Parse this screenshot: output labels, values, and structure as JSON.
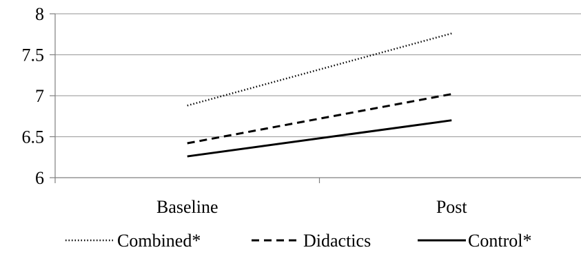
{
  "chart_data": {
    "type": "line",
    "categories": [
      "Baseline",
      "Post"
    ],
    "series": [
      {
        "name": "Combined*",
        "values": [
          6.88,
          7.76
        ],
        "dash": "dotted"
      },
      {
        "name": "Didactics",
        "values": [
          6.42,
          7.02
        ],
        "dash": "dashed"
      },
      {
        "name": "Control*",
        "values": [
          6.26,
          6.7
        ],
        "dash": "solid"
      }
    ],
    "yticks": [
      "6",
      "6.5",
      "7",
      "7.5",
      "8"
    ],
    "ylim": [
      6,
      8
    ],
    "grid": true,
    "legend": "bottom",
    "line_color": "#000000"
  }
}
